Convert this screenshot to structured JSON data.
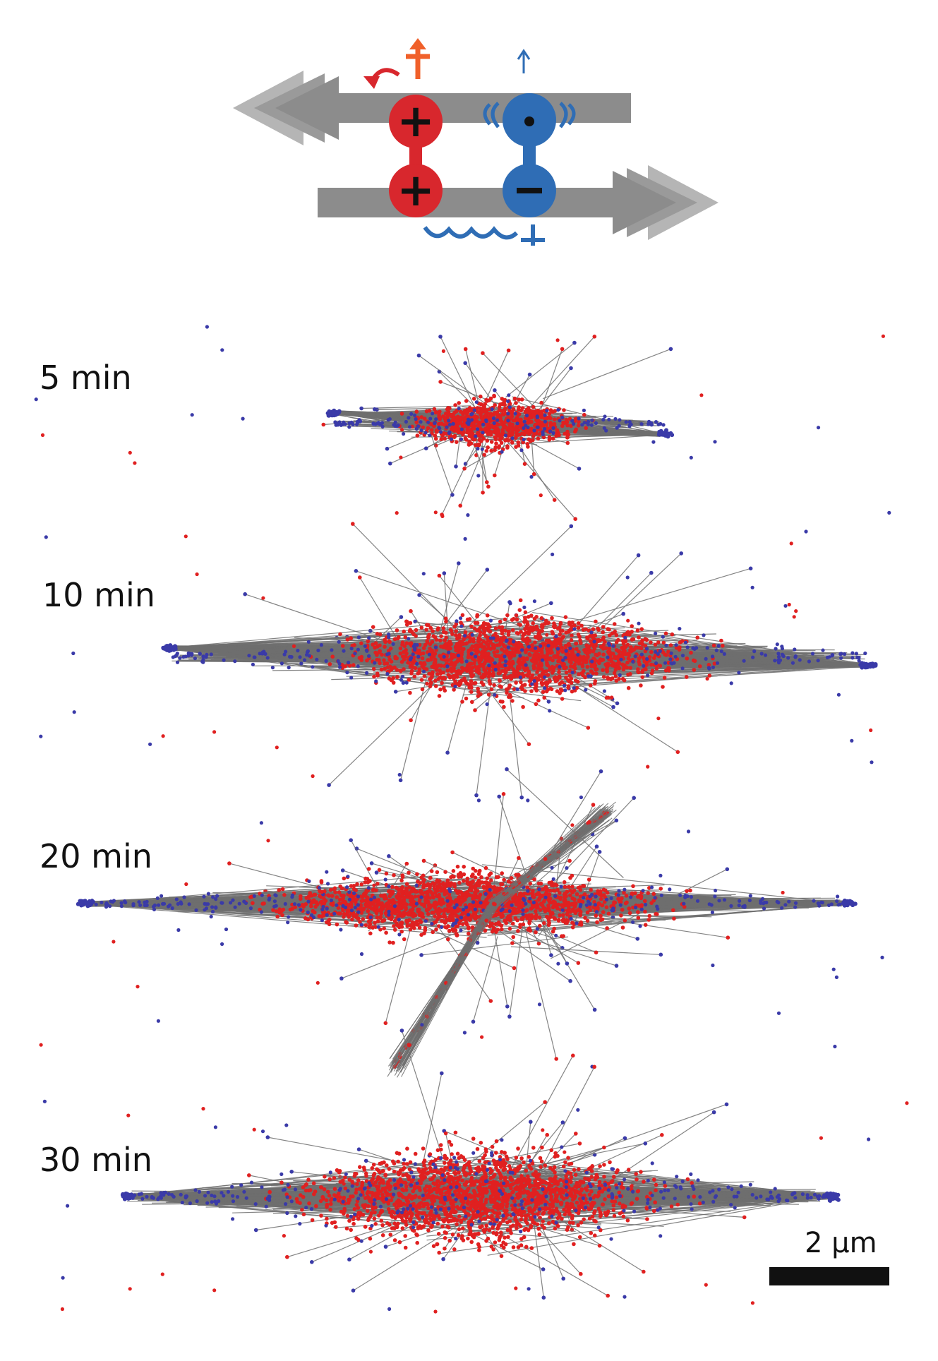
{
  "colors": {
    "filament": "#6e6e6e",
    "plus_motor": "#d8272d",
    "minus_motor": "#2f6db5",
    "arrow": "#a8a8a8",
    "red_dot": "#e02020",
    "blue_dot": "#3a3aa8",
    "background": "#ffffff"
  },
  "schematic": {
    "plus_motor_top_symbol": "+",
    "plus_motor_bottom_symbol": "+",
    "minus_motor_top_symbol": "•",
    "minus_motor_bottom_symbol": "−"
  },
  "snapshots": [
    {
      "label": "5 min"
    },
    {
      "label": "10 min"
    },
    {
      "label": "20 min"
    },
    {
      "label": "30 min"
    }
  ],
  "scale_bar": {
    "label": "2 μm"
  }
}
